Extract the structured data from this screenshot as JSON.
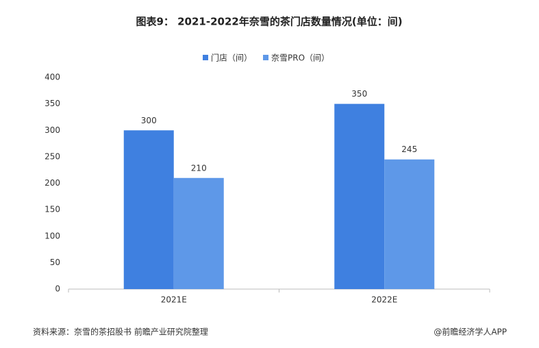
{
  "chart_data": {
    "type": "bar",
    "title": "图表9： 2021-2022年奈雪的茶门店数量情况(单位：间)",
    "categories": [
      "2021E",
      "2022E"
    ],
    "series": [
      {
        "name": "门店（间）",
        "color": "#3f80e0",
        "values": [
          300,
          350
        ]
      },
      {
        "name": "奈雪PRO（间）",
        "color": "#5e98e8",
        "values": [
          210,
          245
        ]
      }
    ],
    "ylim": [
      0,
      400
    ],
    "yticks": [
      0,
      50,
      100,
      150,
      200,
      250,
      300,
      350,
      400
    ],
    "grid": false,
    "legend": "top",
    "source": "资料来源：奈雪的茶招股书 前瞻产业研究院整理",
    "credit": "@前瞻经济学人APP"
  }
}
